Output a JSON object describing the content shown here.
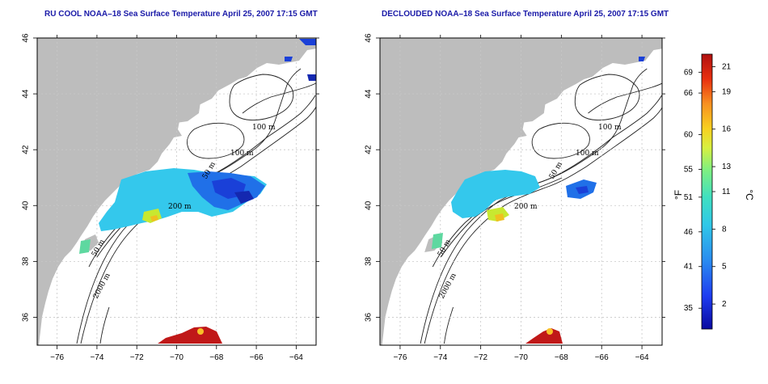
{
  "panels": [
    {
      "id": "left",
      "title": "RU COOL NOAA–18 Sea Surface Temperature April 25, 2007 17:15 GMT",
      "contour_labels": [
        "100 m",
        "100 m",
        "50 m",
        "200 m",
        "50 m",
        "2000 m"
      ]
    },
    {
      "id": "right",
      "title": "DECLOUDED NOAA–18 Sea Surface Temperature April 25, 2007 17:15 GMT",
      "contour_labels": [
        "100 m",
        "100 m",
        "50 m",
        "200 m",
        "50 m",
        "2000 m"
      ]
    }
  ],
  "axes": {
    "x_ticks": [
      "−76",
      "−74",
      "−72",
      "−70",
      "−68",
      "−66",
      "−64"
    ],
    "y_ticks": [
      "36",
      "38",
      "40",
      "42",
      "44",
      "46"
    ],
    "lon_range": [
      -77,
      -63
    ],
    "lat_range": [
      35,
      46
    ]
  },
  "colorbar": {
    "unit_f": "°F",
    "unit_c": "°C",
    "f_ticks": [
      "69",
      "66",
      "60",
      "55",
      "51",
      "46",
      "41",
      "35"
    ],
    "c_ticks": [
      "21",
      "19",
      "16",
      "13",
      "11",
      "8",
      "5",
      "2"
    ],
    "range_c": [
      0,
      22
    ],
    "colors": [
      "#0a0aa0",
      "#1e3cf0",
      "#2a8cf0",
      "#30c8e8",
      "#40e0c0",
      "#80f080",
      "#d8f040",
      "#f8d020",
      "#f89020",
      "#e83010",
      "#b01010"
    ]
  },
  "colors": {
    "land": "#bdbdbd",
    "water": "#ffffff",
    "grid": "#c8c8c8"
  }
}
